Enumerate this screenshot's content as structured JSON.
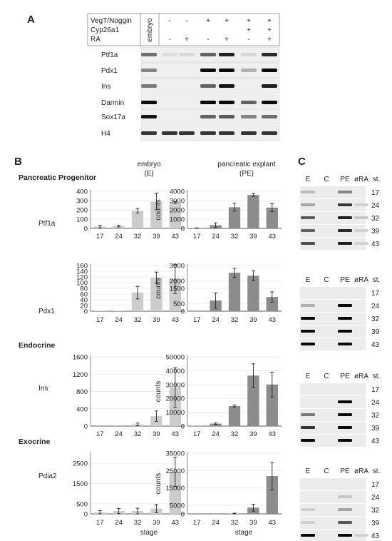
{
  "panel_a": {
    "label": "A",
    "conditions": [
      {
        "name": "VegT/Noggin",
        "values": [
          "-",
          "-",
          "+",
          "+",
          "+",
          "+"
        ]
      },
      {
        "name": "Cyp26a1",
        "values": [
          "",
          "",
          "",
          "",
          "+",
          "+"
        ]
      },
      {
        "name": "RA",
        "values": [
          "-",
          "+",
          "-",
          "+",
          "-",
          "+"
        ]
      }
    ],
    "embryo_label": "embryo",
    "genes": [
      {
        "name": "Ptf1a",
        "bands": [
          0.55,
          0.05,
          0.07,
          0.6,
          0.9,
          0.08,
          0.85
        ]
      },
      {
        "name": "Pdx1",
        "bands": [
          0.45,
          0.0,
          0.0,
          1.0,
          1.0,
          0.25,
          1.0
        ]
      },
      {
        "name": "Ins",
        "bands": [
          0.5,
          0.0,
          0.0,
          0.6,
          0.95,
          0.0,
          0.9
        ]
      },
      {
        "name": "Darmin",
        "bands": [
          1.0,
          0.0,
          0.0,
          1.0,
          1.0,
          0.6,
          1.0
        ]
      },
      {
        "name": "Sox17a",
        "bands": [
          0.95,
          0.0,
          0.0,
          0.6,
          0.65,
          0.45,
          0.55
        ]
      },
      {
        "name": "H4",
        "bands": [
          0.8,
          0.8,
          0.8,
          0.8,
          0.8,
          0.8,
          0.8
        ]
      }
    ]
  },
  "panel_b": {
    "label": "B",
    "col_embryo": [
      "embryo",
      "(E)"
    ],
    "col_pe": [
      "pancreatic explant",
      "(PE)"
    ],
    "xlabel": "stage",
    "counts_label": "counts",
    "stages": [
      "17",
      "24",
      "32",
      "39",
      "43"
    ],
    "sections": [
      {
        "title": "Pancreatic Progenitor",
        "rows": [
          0,
          1
        ]
      },
      {
        "title": "Endocrine",
        "rows": [
          2
        ]
      },
      {
        "title": "Exocrine",
        "rows": [
          3
        ]
      }
    ]
  },
  "panel_c": {
    "label": "C",
    "headers": [
      "E",
      "C",
      "PE",
      "øRA",
      "st."
    ],
    "stages": [
      "17",
      "24",
      "32",
      "39",
      "43"
    ],
    "blocks": [
      {
        "bands": [
          [
            0.2,
            0,
            0.45,
            0.0
          ],
          [
            0.3,
            0,
            0.8,
            0.1
          ],
          [
            0.65,
            0,
            0.9,
            0.15
          ],
          [
            0.6,
            0,
            0.85,
            0.1
          ],
          [
            0.7,
            0,
            0.9,
            0.1
          ]
        ]
      },
      {
        "bands": [
          [
            0,
            0,
            0,
            0
          ],
          [
            0.25,
            0,
            1.0,
            0
          ],
          [
            1.0,
            0,
            1.0,
            0
          ],
          [
            1.0,
            0,
            1.0,
            0
          ],
          [
            1.0,
            0,
            1.0,
            0
          ]
        ]
      },
      {
        "bands": [
          [
            0,
            0,
            0,
            0
          ],
          [
            0,
            0,
            1.0,
            0
          ],
          [
            0.5,
            0,
            1.0,
            0
          ],
          [
            0.8,
            0,
            1.0,
            0
          ],
          [
            1.0,
            0,
            1.0,
            0
          ]
        ]
      },
      {
        "bands": [
          [
            0,
            0,
            0,
            0
          ],
          [
            0,
            0,
            0.15,
            0
          ],
          [
            0.1,
            0,
            0.3,
            0
          ],
          [
            0.1,
            0,
            0.65,
            0
          ],
          [
            1.0,
            0,
            1.0,
            0.1
          ]
        ]
      }
    ]
  },
  "chart_data": [
    {
      "type": "bar",
      "title": "",
      "gene": "Ptf1a",
      "sample": "embryo (E)",
      "categories": [
        "17",
        "24",
        "32",
        "39",
        "43"
      ],
      "values": [
        20,
        25,
        190,
        290,
        280
      ],
      "errors": [
        15,
        10,
        25,
        90,
        10
      ],
      "xlabel": "stage",
      "ylabel": "",
      "ylim": [
        0,
        400
      ],
      "yticks": [
        0,
        100,
        200,
        300,
        400
      ],
      "color": "#cccccc"
    },
    {
      "type": "bar",
      "title": "",
      "gene": "Ptf1a",
      "sample": "pancreatic explant (PE)",
      "categories": [
        "17",
        "24",
        "32",
        "39",
        "43"
      ],
      "values": [
        30,
        350,
        2280,
        3600,
        2240
      ],
      "errors": [
        20,
        250,
        420,
        150,
        420
      ],
      "xlabel": "stage",
      "ylabel": "counts",
      "ylim": [
        0,
        4000
      ],
      "yticks": [
        0,
        1000,
        2000,
        3000,
        4000
      ],
      "color": "#8c8c8c"
    },
    {
      "type": "bar",
      "title": "",
      "gene": "Pdx1",
      "sample": "embryo (E)",
      "categories": [
        "17",
        "24",
        "32",
        "39",
        "43"
      ],
      "values": [
        1,
        1,
        65,
        117,
        114
      ],
      "errors": [
        0,
        0,
        22,
        20,
        52
      ],
      "xlabel": "stage",
      "ylabel": "",
      "ylim": [
        0,
        160
      ],
      "yticks": [
        0,
        20,
        40,
        60,
        80,
        100,
        120,
        140,
        160
      ],
      "color": "#cccccc"
    },
    {
      "type": "bar",
      "title": "",
      "gene": "Pdx1",
      "sample": "pancreatic explant (PE)",
      "categories": [
        "17",
        "24",
        "32",
        "39",
        "43"
      ],
      "values": [
        5,
        700,
        2520,
        2330,
        930
      ],
      "errors": [
        0,
        500,
        300,
        320,
        340
      ],
      "xlabel": "stage",
      "ylabel": "counts",
      "ylim": [
        0,
        3000
      ],
      "yticks": [
        0,
        500,
        1500,
        2000,
        3000
      ],
      "color": "#8c8c8c"
    },
    {
      "type": "bar",
      "title": "",
      "gene": "Ins",
      "sample": "embryo (E)",
      "categories": [
        "17",
        "24",
        "32",
        "39",
        "43"
      ],
      "values": [
        1,
        1,
        40,
        230,
        890
      ],
      "errors": [
        0,
        0,
        30,
        120,
        460
      ],
      "xlabel": "stage",
      "ylabel": "",
      "ylim": [
        0,
        1600
      ],
      "yticks": [
        0,
        400,
        800,
        1200,
        1600
      ],
      "color": "#cccccc"
    },
    {
      "type": "bar",
      "title": "",
      "gene": "Ins",
      "sample": "pancreatic explant (PE)",
      "categories": [
        "17",
        "24",
        "32",
        "39",
        "43"
      ],
      "values": [
        300,
        1800,
        14500,
        36500,
        30000
      ],
      "errors": [
        0,
        500,
        700,
        8500,
        9000
      ],
      "xlabel": "stage",
      "ylabel": "counts",
      "ylim": [
        0,
        50000
      ],
      "yticks": [
        0,
        10000,
        20000,
        30000,
        40000,
        50000
      ],
      "color": "#8c8c8c"
    },
    {
      "type": "bar",
      "title": "",
      "gene": "Pdia2",
      "sample": "embryo (E)",
      "categories": [
        "17",
        "24",
        "32",
        "39",
        "43"
      ],
      "values": [
        80,
        140,
        140,
        260,
        2080
      ],
      "errors": [
        80,
        130,
        140,
        200,
        720
      ],
      "xlabel": "stage",
      "ylabel": "",
      "ylim": [
        0,
        3000
      ],
      "yticks": [
        0,
        500,
        1500,
        2500
      ],
      "color": "#cccccc"
    },
    {
      "type": "bar",
      "title": "",
      "gene": "Pdia2",
      "sample": "pancreatic explant (PE)",
      "categories": [
        "17",
        "24",
        "32",
        "39",
        "43"
      ],
      "values": [
        50,
        50,
        200,
        3600,
        21800
      ],
      "errors": [
        0,
        0,
        200,
        2000,
        8000
      ],
      "xlabel": "stage",
      "ylabel": "counts",
      "ylim": [
        0,
        35000
      ],
      "yticks": [
        0,
        5000,
        15000,
        25000,
        35000
      ],
      "color": "#8c8c8c"
    }
  ]
}
